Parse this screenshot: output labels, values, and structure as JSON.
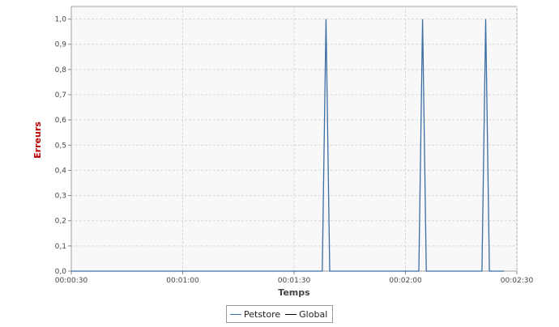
{
  "chart_data": {
    "type": "line",
    "xlabel": "Temps",
    "ylabel": "Erreurs",
    "x_ticks": [
      "00:00:30",
      "00:01:00",
      "00:01:30",
      "00:02:00",
      "00:02:30"
    ],
    "x_tick_seconds": [
      30,
      60,
      90,
      120,
      150
    ],
    "xlim_seconds": [
      30,
      150
    ],
    "y_ticks": [
      "0,0",
      "0,1",
      "0,2",
      "0,3",
      "0,4",
      "0,5",
      "0,6",
      "0,7",
      "0,8",
      "0,9",
      "1,0"
    ],
    "ylim": [
      0,
      1.05
    ],
    "grid": true,
    "legend_position": "bottom",
    "series": [
      {
        "name": "Petstore",
        "color": "#3a6ea5",
        "x_seconds": [
          30,
          97.6,
          98.6,
          99.6,
          123.6,
          124.6,
          125.6,
          140.6,
          141.6,
          142.6,
          146.5
        ],
        "values": [
          0,
          0,
          1,
          0,
          0,
          1,
          0,
          0,
          1,
          0,
          0
        ]
      },
      {
        "name": "Global",
        "color": "#000000",
        "x_seconds": [],
        "values": []
      }
    ]
  }
}
